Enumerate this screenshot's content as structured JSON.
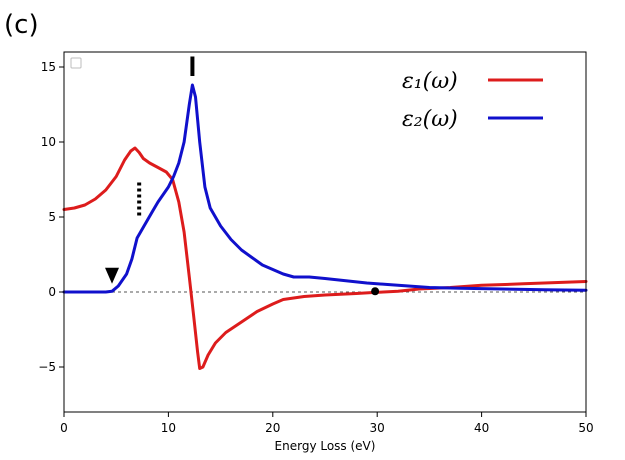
{
  "panel_label": "(c)",
  "chart_data": {
    "type": "line",
    "title": "",
    "xlabel": "Energy Loss (eV)",
    "ylabel": "",
    "xlim": [
      0,
      50
    ],
    "ylim": [
      -8,
      16
    ],
    "xticks": [
      0,
      10,
      20,
      30,
      40,
      50
    ],
    "xtick_labels": [
      "0",
      "10",
      "20",
      "30",
      "40",
      "50"
    ],
    "yticks": [
      -5,
      0,
      5,
      10,
      15
    ],
    "ytick_labels": [
      "−5",
      "0",
      "5",
      "10",
      "15"
    ],
    "grid": false,
    "legend_position": "top-right",
    "reference_line": {
      "y": 0,
      "style": "dashed",
      "color": "#555555"
    },
    "series": [
      {
        "name": "ε₁(ω)",
        "color": "#dd1c1c",
        "points": [
          [
            0,
            5.5
          ],
          [
            1,
            5.6
          ],
          [
            2,
            5.8
          ],
          [
            3,
            6.2
          ],
          [
            4,
            6.8
          ],
          [
            5,
            7.7
          ],
          [
            5.8,
            8.8
          ],
          [
            6.4,
            9.4
          ],
          [
            6.8,
            9.6
          ],
          [
            7.2,
            9.3
          ],
          [
            7.6,
            8.9
          ],
          [
            8.2,
            8.6
          ],
          [
            9,
            8.3
          ],
          [
            9.8,
            8.0
          ],
          [
            10.4,
            7.5
          ],
          [
            11,
            6.0
          ],
          [
            11.5,
            4.0
          ],
          [
            12,
            1.0
          ],
          [
            12.4,
            -1.5
          ],
          [
            12.8,
            -4.0
          ],
          [
            13.0,
            -5.1
          ],
          [
            13.3,
            -5.0
          ],
          [
            13.8,
            -4.2
          ],
          [
            14.5,
            -3.4
          ],
          [
            15.5,
            -2.7
          ],
          [
            17,
            -2.0
          ],
          [
            18.5,
            -1.3
          ],
          [
            20,
            -0.8
          ],
          [
            21,
            -0.5
          ],
          [
            23,
            -0.3
          ],
          [
            25,
            -0.2
          ],
          [
            28,
            -0.1
          ],
          [
            30,
            -0.02
          ],
          [
            32,
            0.05
          ],
          [
            34,
            0.2
          ],
          [
            37,
            0.3
          ],
          [
            40,
            0.45
          ],
          [
            44,
            0.55
          ],
          [
            48,
            0.65
          ],
          [
            50,
            0.7
          ]
        ]
      },
      {
        "name": "ε₂(ω)",
        "color": "#1010cc",
        "points": [
          [
            0,
            0
          ],
          [
            2,
            0
          ],
          [
            4,
            0
          ],
          [
            4.6,
            0.05
          ],
          [
            5.2,
            0.4
          ],
          [
            6,
            1.2
          ],
          [
            6.5,
            2.2
          ],
          [
            7,
            3.6
          ],
          [
            7.5,
            4.2
          ],
          [
            8,
            4.8
          ],
          [
            8.5,
            5.4
          ],
          [
            9,
            6.0
          ],
          [
            9.5,
            6.5
          ],
          [
            10,
            7.0
          ],
          [
            10.5,
            7.7
          ],
          [
            11,
            8.6
          ],
          [
            11.5,
            10.0
          ],
          [
            12,
            12.5
          ],
          [
            12.3,
            13.8
          ],
          [
            12.6,
            13.0
          ],
          [
            13,
            10.0
          ],
          [
            13.5,
            7.0
          ],
          [
            14,
            5.6
          ],
          [
            15,
            4.4
          ],
          [
            16,
            3.5
          ],
          [
            17,
            2.8
          ],
          [
            18,
            2.3
          ],
          [
            19,
            1.8
          ],
          [
            20,
            1.5
          ],
          [
            21,
            1.2
          ],
          [
            22,
            1.0
          ],
          [
            23.5,
            1.0
          ],
          [
            25,
            0.9
          ],
          [
            27,
            0.75
          ],
          [
            29,
            0.6
          ],
          [
            31,
            0.5
          ],
          [
            33,
            0.4
          ],
          [
            35,
            0.3
          ],
          [
            38,
            0.25
          ],
          [
            42,
            0.2
          ],
          [
            46,
            0.15
          ],
          [
            50,
            0.12
          ]
        ]
      }
    ],
    "annotations": [
      {
        "kind": "down-triangle",
        "x": 4.6,
        "y": 0.55,
        "color": "#000000"
      },
      {
        "kind": "dotted-vertical-bar",
        "x": 7.2,
        "y_low": 5.0,
        "y_high": 7.3,
        "color": "#000000"
      },
      {
        "kind": "solid-vertical-bar",
        "x": 12.3,
        "y_low": 14.4,
        "y_high": 15.7,
        "color": "#000000"
      },
      {
        "kind": "dot",
        "x": 29.8,
        "y": 0.05,
        "color": "#000000"
      }
    ]
  }
}
